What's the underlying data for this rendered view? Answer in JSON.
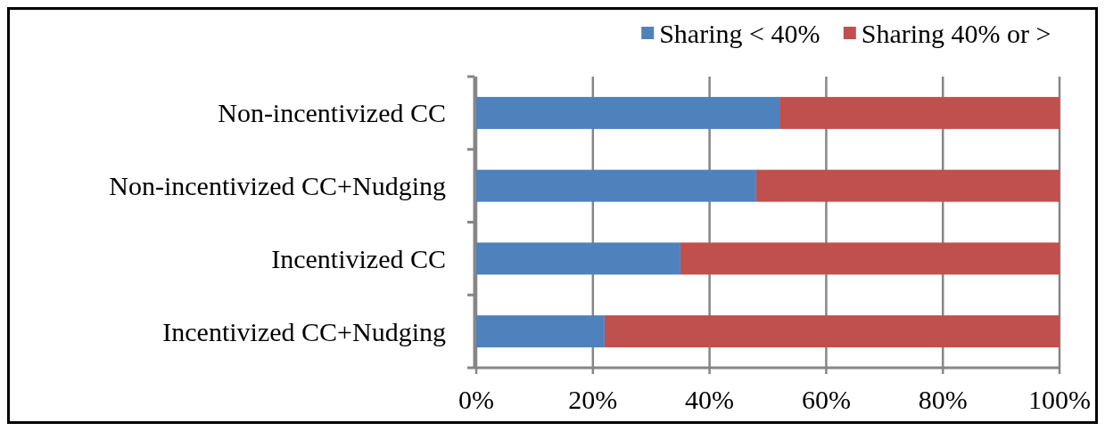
{
  "chart_data": {
    "type": "bar",
    "orientation": "horizontal",
    "stacked": true,
    "categories": [
      "Non-incentivized CC",
      "Non-incentivized CC+Nudging",
      "Incentivized CC",
      "Incentivized CC+Nudging"
    ],
    "series": [
      {
        "name": "Sharing < 40%",
        "color": "#4f81bd",
        "values": [
          52,
          48,
          35,
          22
        ]
      },
      {
        "name": "Sharing 40% or >",
        "color": "#c0504d",
        "values": [
          48,
          52,
          65,
          78
        ]
      }
    ],
    "xlim": [
      0,
      100
    ],
    "xticks": [
      {
        "value": 0,
        "label": "0%"
      },
      {
        "value": 20,
        "label": "20%"
      },
      {
        "value": 40,
        "label": "40%"
      },
      {
        "value": 60,
        "label": "60%"
      },
      {
        "value": 80,
        "label": "80%"
      },
      {
        "value": 100,
        "label": "100%"
      }
    ],
    "grid": "x",
    "legend": "top right"
  }
}
